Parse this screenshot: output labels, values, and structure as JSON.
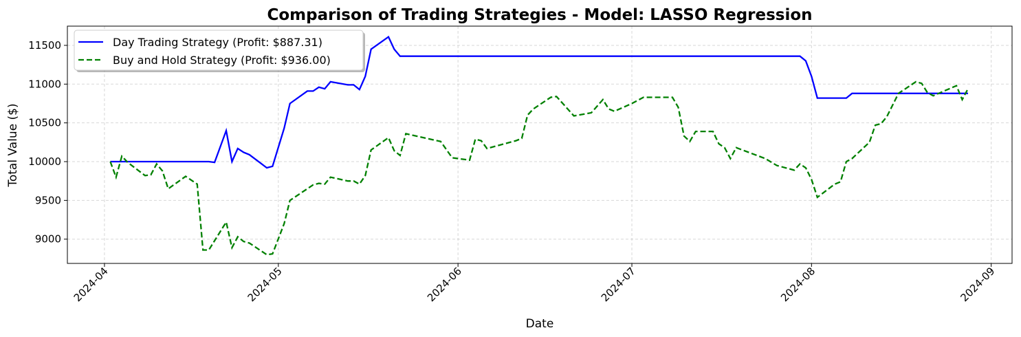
{
  "chart_data": {
    "type": "line",
    "title": "Comparison of Trading Strategies - Model: LASSO Regression",
    "x_label": "Date",
    "y_label": "Total Value ($)",
    "xlim": [
      19807.6,
      19970.6
    ],
    "ylim": [
      8687,
      11748
    ],
    "xticks": [
      {
        "value": 19814,
        "label": "2024-04"
      },
      {
        "value": 19844,
        "label": "2024-05"
      },
      {
        "value": 19875,
        "label": "2024-06"
      },
      {
        "value": 19905,
        "label": "2024-07"
      },
      {
        "value": 19936,
        "label": "2024-08"
      },
      {
        "value": 19967,
        "label": "2024-09"
      }
    ],
    "yticks": [
      9000,
      9500,
      10000,
      10500,
      11000,
      11500
    ],
    "grid": true,
    "legend": "upper left",
    "series": [
      {
        "name": "Day Trading Strategy (Profit: $887.31)",
        "color": "#0000ff",
        "linestyle": "solid",
        "x": [
          19815,
          19832,
          19833,
          19835,
          19836,
          19837,
          19838,
          19839,
          19842,
          19843,
          19845,
          19846,
          19849,
          19850,
          19851,
          19852,
          19853,
          19856,
          19857,
          19858,
          19859,
          19860,
          19863,
          19864,
          19865,
          19866,
          19934,
          19935,
          19936,
          19937,
          19942,
          19943,
          19963
        ],
        "values": [
          10000,
          10000,
          9990,
          10400,
          10000,
          10170,
          10120,
          10090,
          9920,
          9940,
          10430,
          10750,
          10910,
          10910,
          10960,
          10940,
          11030,
          10990,
          10990,
          10930,
          11100,
          11450,
          11610,
          11450,
          11360,
          11360,
          11360,
          11300,
          11100,
          10820,
          10820,
          10880,
          10880
        ]
      },
      {
        "name": "Buy and Hold Strategy (Profit: $936.00)",
        "color": "#008000",
        "linestyle": "dashed",
        "x": [
          19815,
          19816,
          19817,
          19818,
          19821,
          19822,
          19823,
          19824,
          19825,
          19828,
          19830,
          19831,
          19832,
          19835,
          19836,
          19837,
          19838,
          19839,
          19842,
          19843,
          19845,
          19846,
          19850,
          19851,
          19852,
          19853,
          19856,
          19857,
          19858,
          19859,
          19860,
          19863,
          19864,
          19865,
          19866,
          19872,
          19874,
          19877,
          19878,
          19879,
          19880,
          19885,
          19886,
          19887,
          19888,
          19891,
          19892,
          19895,
          19898,
          19900,
          19901,
          19902,
          19905,
          19907,
          19912,
          19913,
          19914,
          19915,
          19916,
          19919,
          19920,
          19921,
          19922,
          19923,
          19928,
          19930,
          19933,
          19934,
          19935,
          19936,
          19937,
          19940,
          19941,
          19942,
          19943,
          19946,
          19947,
          19948,
          19949,
          19951,
          19954,
          19955,
          19956,
          19957,
          19961,
          19962,
          19963
        ],
        "values": [
          10000,
          9800,
          10070,
          9990,
          9820,
          9830,
          9970,
          9880,
          9650,
          9810,
          9710,
          8860,
          8860,
          9220,
          8890,
          9030,
          8970,
          8950,
          8800,
          8810,
          9200,
          9500,
          9700,
          9720,
          9710,
          9800,
          9750,
          9750,
          9710,
          9820,
          10150,
          10310,
          10140,
          10080,
          10360,
          10260,
          10050,
          10020,
          10290,
          10270,
          10170,
          10270,
          10300,
          10600,
          10680,
          10830,
          10840,
          10590,
          10630,
          10800,
          10680,
          10650,
          10750,
          10830,
          10830,
          10700,
          10330,
          10260,
          10390,
          10390,
          10230,
          10180,
          10040,
          10180,
          10040,
          9950,
          9890,
          9970,
          9920,
          9770,
          9540,
          9710,
          9740,
          10000,
          10040,
          10250,
          10470,
          10490,
          10580,
          10880,
          11030,
          11010,
          10890,
          10850,
          10980,
          10800,
          10940
        ]
      }
    ]
  }
}
